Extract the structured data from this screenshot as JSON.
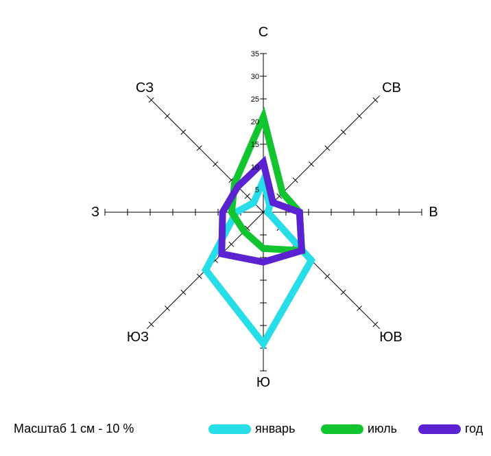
{
  "chart_data": {
    "type": "radar",
    "directions": [
      "С",
      "СВ",
      "В",
      "ЮВ",
      "Ю",
      "ЮЗ",
      "З",
      "СЗ"
    ],
    "rmax": 35,
    "tick_values": [
      5,
      10,
      15,
      20,
      25,
      30,
      35
    ],
    "series": [
      {
        "name": "январь",
        "color": "#27dde8",
        "values": [
          7,
          2,
          1,
          15,
          29,
          18,
          6,
          3
        ]
      },
      {
        "name": "июль",
        "color": "#11c430",
        "values": [
          21,
          6,
          8,
          12,
          8,
          6,
          7,
          9
        ]
      },
      {
        "name": "год",
        "color": "#5b22d2",
        "values": [
          11,
          3,
          8,
          12,
          11,
          13,
          9,
          8
        ]
      }
    ]
  },
  "scale_note": "Масштаб 1 см - 10 %"
}
